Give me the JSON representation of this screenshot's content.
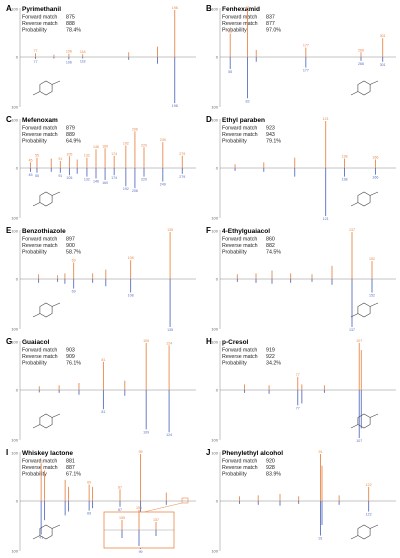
{
  "panels": [
    {
      "letter": "A",
      "name": "Pyrimethanil",
      "fwd": "875",
      "rev": "888",
      "prob": "78.4%",
      "peaks": [
        [
          77,
          8,
          4
        ],
        [
          93,
          5,
          3
        ],
        [
          106,
          7,
          5
        ],
        [
          118,
          6,
          3
        ],
        [
          158,
          10,
          6
        ],
        [
          183,
          22,
          14
        ],
        [
          198,
          100,
          96
        ]
      ],
      "labels": [
        [
          198,
          "198",
          100
        ],
        [
          118,
          "118",
          6
        ],
        [
          106,
          "106",
          7
        ],
        [
          77,
          "77",
          8
        ]
      ]
    },
    {
      "letter": "B",
      "name": "Fenhexamid",
      "fwd": "837",
      "rev": "877",
      "prob": "97.0%",
      "peaks": [
        [
          55,
          50,
          25
        ],
        [
          83,
          100,
          86
        ],
        [
          97,
          15,
          10
        ],
        [
          177,
          20,
          22
        ],
        [
          266,
          10,
          8
        ],
        [
          301,
          40,
          10
        ]
      ],
      "labels": [
        [
          55,
          "55",
          50
        ],
        [
          83,
          "83",
          100
        ],
        [
          177,
          "177",
          20
        ],
        [
          266,
          "266",
          10
        ],
        [
          301,
          "301",
          40
        ]
      ]
    },
    {
      "letter": "C",
      "name": "Mefenoxam",
      "fwd": "879",
      "rev": "889",
      "prob": "64.9%",
      "peaks": [
        [
          45,
          12,
          8
        ],
        [
          55,
          22,
          10
        ],
        [
          77,
          20,
          8
        ],
        [
          91,
          15,
          10
        ],
        [
          105,
          25,
          15
        ],
        [
          117,
          18,
          12
        ],
        [
          132,
          22,
          18
        ],
        [
          146,
          40,
          22
        ],
        [
          160,
          42,
          25
        ],
        [
          174,
          26,
          15
        ],
        [
          192,
          48,
          38
        ],
        [
          206,
          78,
          42
        ],
        [
          220,
          44,
          18
        ],
        [
          249,
          55,
          28
        ],
        [
          279,
          26,
          12
        ]
      ],
      "labels": [
        [
          45,
          "45",
          12
        ],
        [
          55,
          "55",
          22
        ],
        [
          91,
          "91",
          15
        ],
        [
          105,
          "105",
          25
        ],
        [
          132,
          "132",
          22
        ],
        [
          146,
          "146",
          40
        ],
        [
          160,
          "160",
          42
        ],
        [
          174,
          "174",
          26
        ],
        [
          192,
          "192",
          48
        ],
        [
          206,
          "206",
          78
        ],
        [
          220,
          "220",
          44
        ],
        [
          249,
          "249",
          55
        ],
        [
          279,
          "279",
          26
        ]
      ]
    },
    {
      "letter": "D",
      "name": "Ethyl paraben",
      "fwd": "923",
      "rev": "943",
      "prob": "79.1%",
      "peaks": [
        [
          39,
          8,
          6
        ],
        [
          65,
          12,
          8
        ],
        [
          93,
          22,
          18
        ],
        [
          121,
          100,
          100
        ],
        [
          138,
          20,
          18
        ],
        [
          166,
          18,
          14
        ]
      ],
      "labels": [
        [
          121,
          "121",
          100
        ],
        [
          138,
          "138",
          20
        ],
        [
          166,
          "166",
          18
        ]
      ]
    },
    {
      "letter": "E",
      "name": "Benzothiazole",
      "fwd": "897",
      "rev": "900",
      "prob": "58.7%",
      "peaks": [
        [
          45,
          10,
          8
        ],
        [
          58,
          8,
          6
        ],
        [
          63,
          12,
          10
        ],
        [
          69,
          35,
          20
        ],
        [
          82,
          12,
          8
        ],
        [
          91,
          20,
          15
        ],
        [
          108,
          40,
          28
        ],
        [
          135,
          100,
          100
        ]
      ],
      "labels": [
        [
          69,
          "69",
          35
        ],
        [
          108,
          "108",
          40
        ],
        [
          135,
          "135",
          100
        ]
      ]
    },
    {
      "letter": "F",
      "name": "4-Ethylguaiacol",
      "fwd": "860",
      "rev": "882",
      "prob": "74.5%",
      "peaks": [
        [
          51,
          10,
          6
        ],
        [
          65,
          12,
          8
        ],
        [
          77,
          18,
          10
        ],
        [
          91,
          12,
          8
        ],
        [
          107,
          10,
          6
        ],
        [
          122,
          28,
          12
        ],
        [
          137,
          100,
          100
        ],
        [
          152,
          38,
          28
        ]
      ],
      "labels": [
        [
          137,
          "137",
          100
        ],
        [
          152,
          "152",
          38
        ]
      ]
    },
    {
      "letter": "G",
      "name": "Guaiacol",
      "fwd": "903",
      "rev": "909",
      "prob": "76.1%",
      "peaks": [
        [
          39,
          8,
          5
        ],
        [
          52,
          10,
          6
        ],
        [
          65,
          15,
          10
        ],
        [
          81,
          60,
          40
        ],
        [
          95,
          20,
          12
        ],
        [
          109,
          100,
          82
        ],
        [
          124,
          95,
          88
        ]
      ],
      "labels": [
        [
          81,
          "81",
          60
        ],
        [
          109,
          "109",
          100
        ],
        [
          124,
          "124",
          95
        ]
      ]
    },
    {
      "letter": "H",
      "name": "p-Cresol",
      "fwd": "919",
      "rev": "922",
      "prob": "34.2%",
      "peaks": [
        [
          51,
          12,
          6
        ],
        [
          63,
          10,
          8
        ],
        [
          77,
          28,
          32
        ],
        [
          79,
          12,
          28
        ],
        [
          90,
          10,
          6
        ],
        [
          107,
          100,
          100
        ],
        [
          108,
          85,
          80
        ]
      ],
      "labels": [
        [
          77,
          "77",
          28
        ],
        [
          107,
          "107",
          100
        ]
      ]
    },
    {
      "letter": "I",
      "name": "Whiskey lactone",
      "fwd": "881",
      "rev": "887",
      "prob": "67.1%",
      "peaks": [
        [
          41,
          80,
          70
        ],
        [
          43,
          65,
          40
        ],
        [
          55,
          45,
          30
        ],
        [
          57,
          30,
          22
        ],
        [
          69,
          35,
          20
        ],
        [
          71,
          30,
          15
        ],
        [
          87,
          25,
          12
        ],
        [
          99,
          100,
          100
        ],
        [
          114,
          18,
          8
        ]
      ],
      "labels": [
        [
          41,
          "41",
          80
        ],
        [
          69,
          "69",
          35
        ],
        [
          87,
          "87",
          25
        ],
        [
          99,
          "99",
          100
        ]
      ],
      "inset": {
        "labels": [
          "155",
          "156",
          "157"
        ],
        "vals": [
          [
            155,
            10,
            8
          ],
          [
            156,
            20,
            16
          ],
          [
            157,
            8,
            6
          ]
        ]
      }
    },
    {
      "letter": "J",
      "name": "Phenylethyl alcohol",
      "fwd": "920",
      "rev": "928",
      "prob": "83.9%",
      "peaks": [
        [
          39,
          10,
          6
        ],
        [
          51,
          12,
          8
        ],
        [
          65,
          15,
          10
        ],
        [
          77,
          10,
          6
        ],
        [
          91,
          100,
          72
        ],
        [
          92,
          75,
          50
        ],
        [
          103,
          12,
          8
        ],
        [
          122,
          30,
          22
        ]
      ],
      "labels": [
        [
          91,
          "91",
          100
        ],
        [
          122,
          "122",
          30
        ]
      ]
    }
  ],
  "field_labels": {
    "fwd": "Forward match",
    "rev": "Reverse match",
    "prob": "Probability"
  }
}
